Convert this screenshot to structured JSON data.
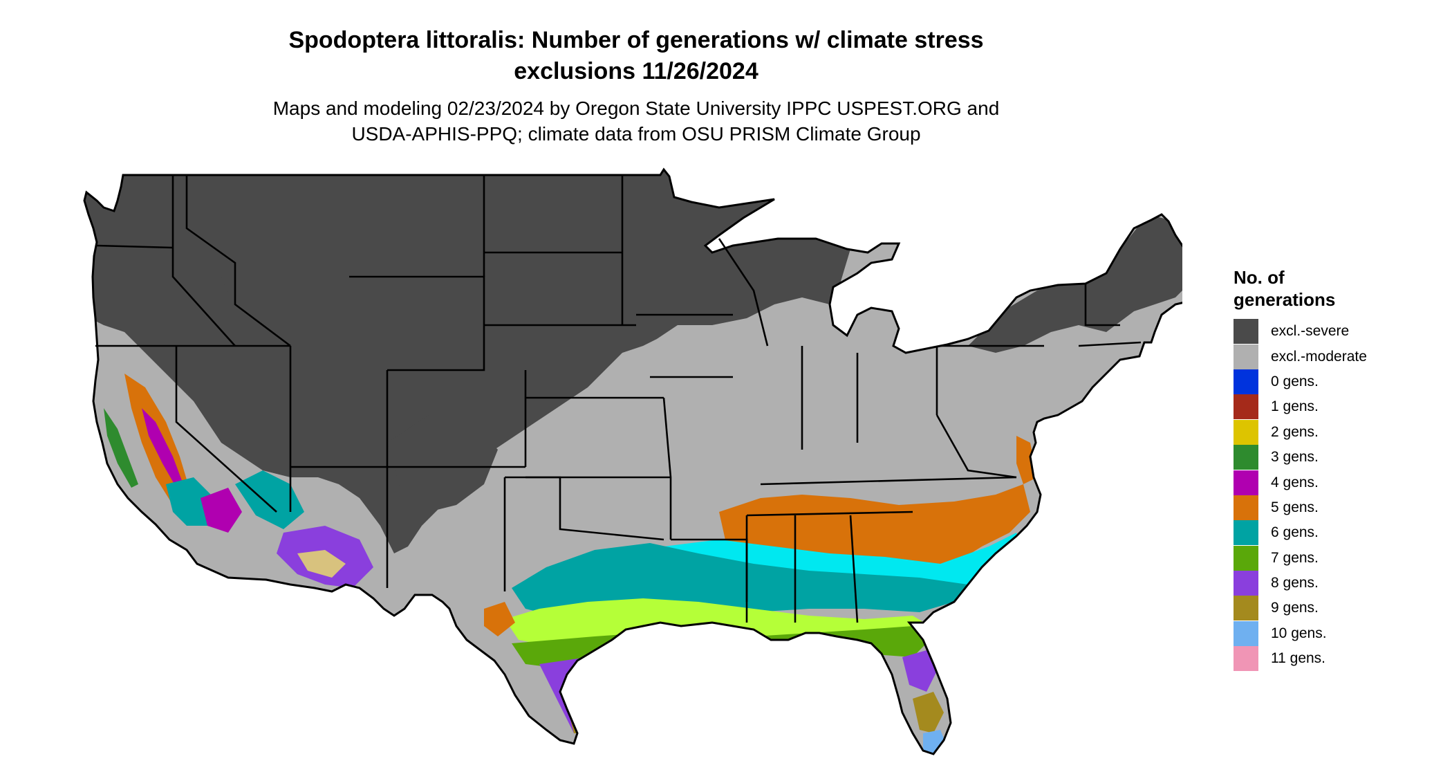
{
  "title_line1": "Spodoptera littoralis: Number of generations w/ climate stress",
  "title_line2": "exclusions 11/26/2024",
  "subtitle_line1": "Maps and modeling 02/23/2024 by Oregon State University IPPC USPEST.ORG and",
  "subtitle_line2": "USDA-APHIS-PPQ; climate data from OSU PRISM Climate Group",
  "legend": {
    "title": "No. of generations",
    "items": [
      {
        "label": "excl.-severe",
        "color": "#4a4a4a"
      },
      {
        "label": "excl.-moderate",
        "color": "#b0b0b0"
      },
      {
        "label": "0 gens.",
        "color": "#0033dd"
      },
      {
        "label": "1 gens.",
        "color": "#a52a1a"
      },
      {
        "label": "2 gens.",
        "color": "#ddc400"
      },
      {
        "label": "3 gens.",
        "color": "#2e8b2e"
      },
      {
        "label": "4 gens.",
        "color": "#b000b0"
      },
      {
        "label": "5 gens.",
        "color": "#d8720a"
      },
      {
        "label": "6 gens.",
        "color": "#00a3a3"
      },
      {
        "label": "7 gens.",
        "color": "#5aa80a"
      },
      {
        "label": "8 gens.",
        "color": "#8a3fdd"
      },
      {
        "label": "9 gens.",
        "color": "#a48a1e"
      },
      {
        "label": "10 gens.",
        "color": "#6fb0f0"
      },
      {
        "label": "11 gens.",
        "color": "#f095b5"
      }
    ]
  },
  "map_colors": {
    "severe": "#4a4a4a",
    "moderate": "#b0b0b0",
    "gen3": "#2e8b2e",
    "gen4": "#b000b0",
    "gen5": "#d8720a",
    "gen6": "#00a3a3",
    "gen6_light": "#00e8f0",
    "gen7": "#5aa80a",
    "gen7_light": "#b5ff38",
    "gen8": "#8a3fdd",
    "gen9": "#a48a1e",
    "gen9_light": "#d8c27e",
    "gen10": "#6fb0f0",
    "gen11": "#f095b5",
    "border": "#000000"
  }
}
